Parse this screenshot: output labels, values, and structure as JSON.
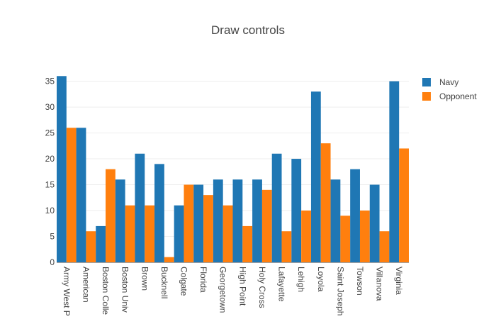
{
  "chart_data": {
    "type": "bar",
    "title": "Draw controls",
    "xlabel": "",
    "ylabel": "",
    "ylim": [
      0,
      37
    ],
    "yticks": [
      0,
      5,
      10,
      15,
      20,
      25,
      30,
      35
    ],
    "grid": true,
    "legend_position": "top-right",
    "categories": [
      "Army West P",
      "American",
      "Boston Colle",
      "Boston Univ",
      "Brown",
      "Bucknell",
      "Colgate",
      "Florida",
      "Georgetown",
      "High Point",
      "Holy Cross",
      "Lafayette",
      "Lehigh",
      "Loyola",
      "Saint Joseph",
      "Towson",
      "Villanova",
      "Virginia"
    ],
    "series": [
      {
        "name": "Navy",
        "color": "#1f77b4",
        "values": [
          36,
          26,
          7,
          16,
          21,
          19,
          11,
          15,
          16,
          16,
          16,
          21,
          20,
          33,
          16,
          18,
          15,
          35
        ]
      },
      {
        "name": "Opponent",
        "color": "#ff7f0e",
        "values": [
          26,
          6,
          18,
          11,
          11,
          1,
          15,
          13,
          11,
          7,
          14,
          6,
          10,
          23,
          9,
          10,
          6,
          22
        ]
      }
    ]
  }
}
